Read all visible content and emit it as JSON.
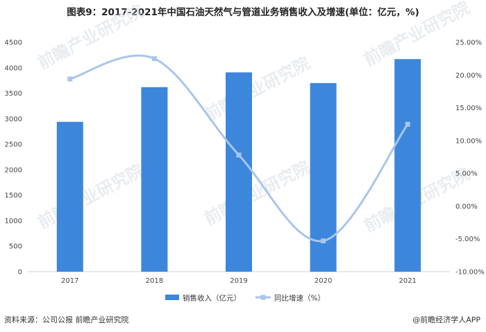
{
  "title": "图表9：2017-2021年中国石油天然气与管道业务销售收入及增速(单位：亿元，%)",
  "source": "资料来源：公司公报 前瞻产业研究院",
  "brand": "@前瞻经济学人APP",
  "watermark": "前瞻产业研究院",
  "colors": {
    "bar": "#3c87dc",
    "line": "#a9c5ea",
    "watermark": "#d8dde4"
  },
  "chart_data": {
    "type": "bar",
    "title": "图表9：2017-2021年中国石油天然气与管道业务销售收入及增速(单位：亿元，%)",
    "categories": [
      "2017",
      "2018",
      "2019",
      "2020",
      "2021"
    ],
    "series": [
      {
        "name": "销售收入（亿元）",
        "type": "bar",
        "axis": "left",
        "values": [
          2940,
          3620,
          3910,
          3700,
          4170
        ]
      },
      {
        "name": "同比增速（%）",
        "type": "line",
        "axis": "right",
        "values": [
          19.4,
          22.5,
          7.8,
          -5.3,
          12.5
        ]
      }
    ],
    "y_left": {
      "min": 0,
      "max": 4500,
      "ticks": [
        "0",
        "500",
        "1000",
        "1500",
        "2000",
        "2500",
        "3000",
        "3500",
        "4000",
        "4500"
      ]
    },
    "y_right": {
      "min": -10,
      "max": 25,
      "ticks": [
        "-10.00%",
        "-5.00%",
        "0.00%",
        "5.00%",
        "10.00%",
        "15.00%",
        "20.00%",
        "25.00%"
      ]
    },
    "grid": false,
    "legend": "bottom-center"
  }
}
